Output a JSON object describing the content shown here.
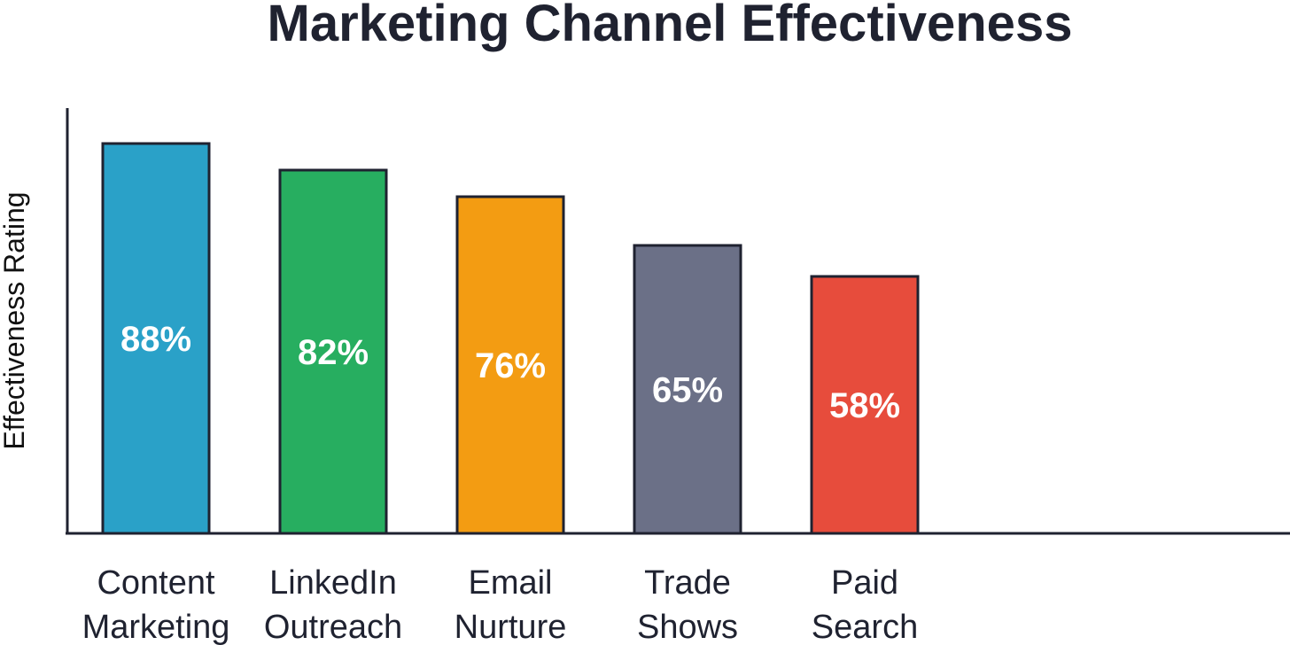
{
  "chart_data": {
    "type": "bar",
    "title": "Marketing Channel Effectiveness",
    "xlabel": "",
    "ylabel": "Effectiveness Rating",
    "ylim": [
      0,
      100
    ],
    "grid": false,
    "categories": [
      [
        "Content",
        "Marketing"
      ],
      [
        "LinkedIn",
        "Outreach"
      ],
      [
        "Email",
        "Nurture"
      ],
      [
        "Trade",
        "Shows"
      ],
      [
        "Paid",
        "Search"
      ]
    ],
    "values": [
      88,
      82,
      76,
      65,
      58
    ],
    "value_labels": [
      "88%",
      "82%",
      "76%",
      "65%",
      "58%"
    ],
    "colors": [
      "#2aa1c8",
      "#27ae60",
      "#f39c12",
      "#6b7087",
      "#e74c3c"
    ]
  }
}
